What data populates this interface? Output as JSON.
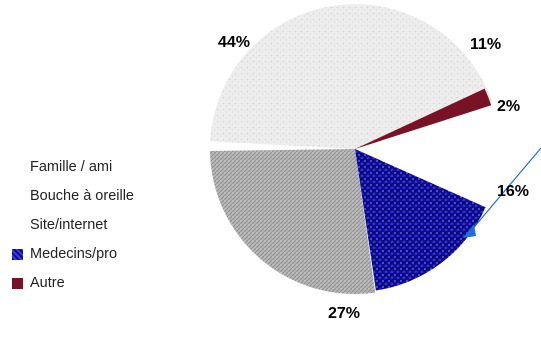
{
  "chart_data": {
    "type": "pie",
    "style": "3d-exploded",
    "categories": [
      "Famille / ami",
      "Bouche à oreille",
      "Site/internet",
      "Medecins/pro",
      "Autre"
    ],
    "values": [
      44,
      11,
      27,
      16,
      2
    ],
    "labels": [
      "44%",
      "11%",
      "27%",
      "16%",
      "2%"
    ],
    "colors": {
      "Famille / ami": "#eaeaea",
      "Bouche à oreille": "#ffffff",
      "Site/internet": "#b8b8b8",
      "Medecins/pro": "#1414a0",
      "Autre": "#7a1226"
    },
    "legend_swatch_visible": [
      false,
      false,
      false,
      true,
      true
    ],
    "legend_position": "left",
    "leader_line_color": "#1f6fd6"
  }
}
